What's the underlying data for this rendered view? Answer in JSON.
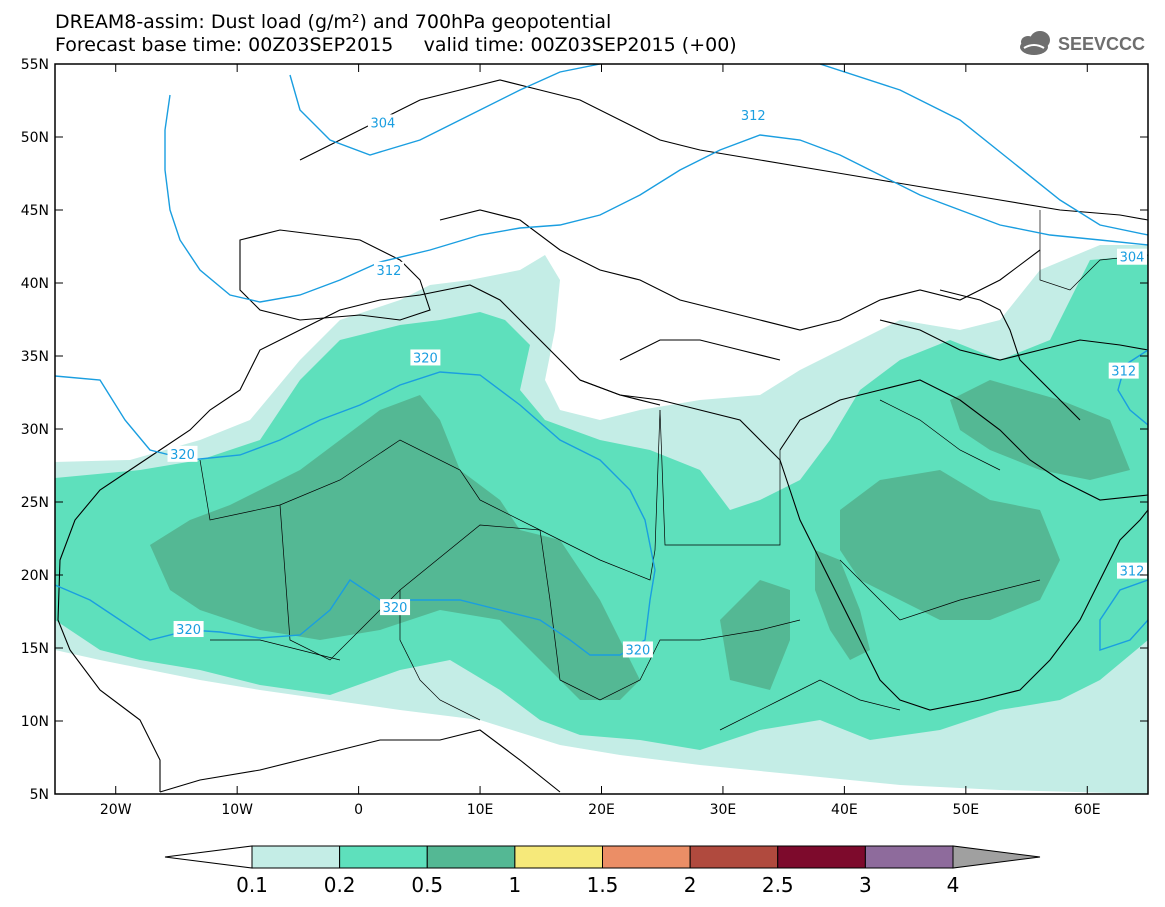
{
  "header": {
    "title_line1": "DREAM8-assim: Dust load (g/m²) and 700hPa geopotential",
    "title_line2": "Forecast base time: 00Z03SEP2015     valid time: 00Z03SEP2015 (+00)",
    "logo_text": "SEEVCCC",
    "logo_icon": "cloud-icon"
  },
  "map": {
    "projection": "cylindrical",
    "lon_range": [
      -25,
      65
    ],
    "lat_range": [
      5,
      55
    ],
    "lon_ticks": [
      {
        "value": -20,
        "label": "20W"
      },
      {
        "value": -10,
        "label": "10W"
      },
      {
        "value": 0,
        "label": "0"
      },
      {
        "value": 10,
        "label": "10E"
      },
      {
        "value": 20,
        "label": "20E"
      },
      {
        "value": 30,
        "label": "30E"
      },
      {
        "value": 40,
        "label": "40E"
      },
      {
        "value": 50,
        "label": "50E"
      },
      {
        "value": 60,
        "label": "60E"
      }
    ],
    "lat_ticks": [
      {
        "value": 55,
        "label": "55N"
      },
      {
        "value": 50,
        "label": "50N"
      },
      {
        "value": 45,
        "label": "45N"
      },
      {
        "value": 40,
        "label": "40N"
      },
      {
        "value": 35,
        "label": "35N"
      },
      {
        "value": 30,
        "label": "30N"
      },
      {
        "value": 25,
        "label": "25N"
      },
      {
        "value": 20,
        "label": "20N"
      },
      {
        "value": 15,
        "label": "15N"
      },
      {
        "value": 10,
        "label": "10N"
      },
      {
        "value": 5,
        "label": "5N"
      }
    ],
    "contour_labels": [
      {
        "text": "304",
        "lon": 2.0,
        "lat": 51.0
      },
      {
        "text": "312",
        "lon": 32.5,
        "lat": 51.5
      },
      {
        "text": "312",
        "lon": 2.5,
        "lat": 40.9
      },
      {
        "text": "304",
        "lon": 64.5,
        "lat": 41.8
      },
      {
        "text": "320",
        "lon": 5.5,
        "lat": 34.9
      },
      {
        "text": "312",
        "lon": 63.0,
        "lat": 34.0
      },
      {
        "text": "320",
        "lon": -14.5,
        "lat": 28.3
      },
      {
        "text": "320",
        "lon": 3.0,
        "lat": 17.8
      },
      {
        "text": "320",
        "lon": -14.0,
        "lat": 16.3
      },
      {
        "text": "320",
        "lon": 23.0,
        "lat": 14.9
      },
      {
        "text": "312",
        "lon": 64.0,
        "lat": 20.3
      }
    ],
    "colors": {
      "dust_0_1": "#c4ede6",
      "dust_0_2": "#5ee0bc",
      "dust_0_5": "#54b894",
      "contour": "#1a9ee0",
      "coastline": "#000000"
    }
  },
  "legend": {
    "levels": [
      "0.1",
      "0.2",
      "0.5",
      "1",
      "1.5",
      "2",
      "2.5",
      "3",
      "4"
    ],
    "colors": [
      "#c4ede6",
      "#5ee0bc",
      "#54b894",
      "#f6e97a",
      "#eb8e66",
      "#b04a3e",
      "#7d0a2c",
      "#8e6b9c",
      "#a0a0a0"
    ]
  }
}
